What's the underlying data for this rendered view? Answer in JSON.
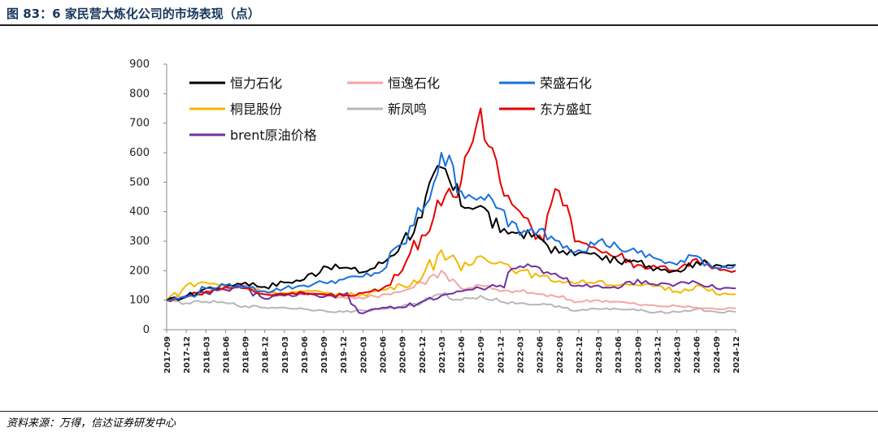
{
  "header": {
    "title": "图 83：6 家民营大炼化公司的市场表现（点）"
  },
  "footer": {
    "source": "资料来源：万得，信达证券研发中心"
  },
  "chart_data": {
    "type": "line",
    "title": "",
    "xlabel": "",
    "ylabel": "",
    "ylim": [
      0,
      900
    ],
    "yticks": [
      0,
      100,
      200,
      300,
      400,
      500,
      600,
      700,
      800,
      900
    ],
    "grid": false,
    "legend_position": "top-left (inside plot, 3 columns)",
    "categories": [
      "2017-09",
      "2017-12",
      "2018-03",
      "2018-06",
      "2018-09",
      "2018-12",
      "2019-03",
      "2019-06",
      "2019-09",
      "2019-12",
      "2020-03",
      "2020-06",
      "2020-09",
      "2020-12",
      "2021-03",
      "2021-06",
      "2021-09",
      "2021-12",
      "2022-03",
      "2022-06",
      "2022-09",
      "2022-12",
      "2023-03",
      "2023-06",
      "2023-09",
      "2023-12",
      "2024-03",
      "2024-06",
      "2024-09",
      "2024-12"
    ],
    "series": [
      {
        "name": "恒力石化",
        "color": "#000000",
        "values": [
          100,
          110,
          140,
          150,
          160,
          145,
          160,
          170,
          215,
          210,
          195,
          225,
          300,
          380,
          550,
          420,
          420,
          330,
          330,
          310,
          260,
          260,
          250,
          230,
          230,
          210,
          200,
          230,
          220,
          220
        ]
      },
      {
        "name": "恒逸石化",
        "color": "#f4a6a6",
        "values": [
          100,
          115,
          130,
          140,
          150,
          130,
          120,
          120,
          115,
          110,
          105,
          120,
          130,
          160,
          200,
          140,
          150,
          130,
          130,
          120,
          110,
          95,
          100,
          95,
          85,
          80,
          80,
          75,
          70,
          72
        ]
      },
      {
        "name": "荣盛石化",
        "color": "#1a6fde",
        "values": [
          100,
          110,
          140,
          150,
          145,
          130,
          140,
          150,
          160,
          170,
          180,
          200,
          290,
          400,
          600,
          470,
          450,
          410,
          320,
          340,
          300,
          270,
          300,
          280,
          260,
          240,
          220,
          250,
          210,
          220
        ]
      },
      {
        "name": "桐昆股份",
        "color": "#f5b800",
        "values": [
          100,
          150,
          160,
          150,
          140,
          130,
          125,
          130,
          125,
          120,
          120,
          135,
          150,
          175,
          270,
          200,
          250,
          230,
          200,
          180,
          165,
          160,
          165,
          150,
          150,
          150,
          130,
          150,
          120,
          120
        ]
      },
      {
        "name": "新凤鸣",
        "color": "#b7b7b7",
        "values": [
          100,
          90,
          95,
          90,
          80,
          75,
          75,
          70,
          65,
          60,
          65,
          70,
          80,
          90,
          120,
          100,
          115,
          95,
          90,
          85,
          80,
          65,
          70,
          70,
          65,
          60,
          60,
          70,
          60,
          60
        ]
      },
      {
        "name": "东方盛虹",
        "color": "#e60000",
        "values": [
          100,
          110,
          130,
          145,
          140,
          120,
          120,
          125,
          120,
          115,
          125,
          140,
          200,
          320,
          420,
          500,
          750,
          500,
          400,
          320,
          470,
          300,
          270,
          250,
          220,
          210,
          200,
          240,
          210,
          200
        ]
      },
      {
        "name": "brent原油价格",
        "color": "#7030a0",
        "values": [
          100,
          115,
          125,
          135,
          145,
          105,
          115,
          120,
          110,
          118,
          55,
          75,
          75,
          95,
          115,
          130,
          140,
          150,
          215,
          210,
          180,
          150,
          150,
          140,
          170,
          150,
          155,
          160,
          140,
          140
        ]
      }
    ]
  }
}
